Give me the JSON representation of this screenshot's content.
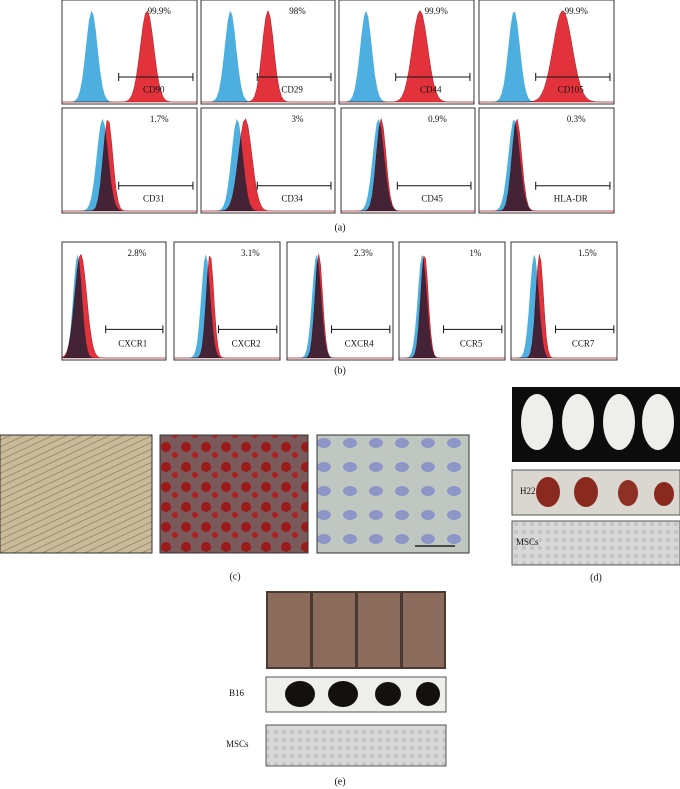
{
  "panel_a": {
    "label": "(a)",
    "plots": [
      {
        "marker": "CD90",
        "percent": "99.9%"
      },
      {
        "marker": "CD29",
        "percent": "98%"
      },
      {
        "marker": "CD44",
        "percent": "99.9%"
      },
      {
        "marker": "CD105",
        "percent": "99.9%"
      },
      {
        "marker": "CD31",
        "percent": "1.7%"
      },
      {
        "marker": "CD34",
        "percent": "3%"
      },
      {
        "marker": "CD45",
        "percent": "0.9%"
      },
      {
        "marker": "HLA-DR",
        "percent": "0.3%"
      }
    ]
  },
  "panel_b": {
    "label": "(b)",
    "plots": [
      {
        "marker": "CXCR1",
        "percent": "2.8%"
      },
      {
        "marker": "CXCR2",
        "percent": "3.1%"
      },
      {
        "marker": "CXCR4",
        "percent": "2.3%"
      },
      {
        "marker": "CCR5",
        "percent": "1%"
      },
      {
        "marker": "CCR7",
        "percent": "1.5%"
      }
    ]
  },
  "panel_c": {
    "label": "(c)"
  },
  "panel_d": {
    "label": "(d)",
    "rows": [
      "H22",
      "MSCs"
    ]
  },
  "panel_e": {
    "label": "(e)",
    "rows": [
      "B16",
      "MSCs"
    ]
  }
}
